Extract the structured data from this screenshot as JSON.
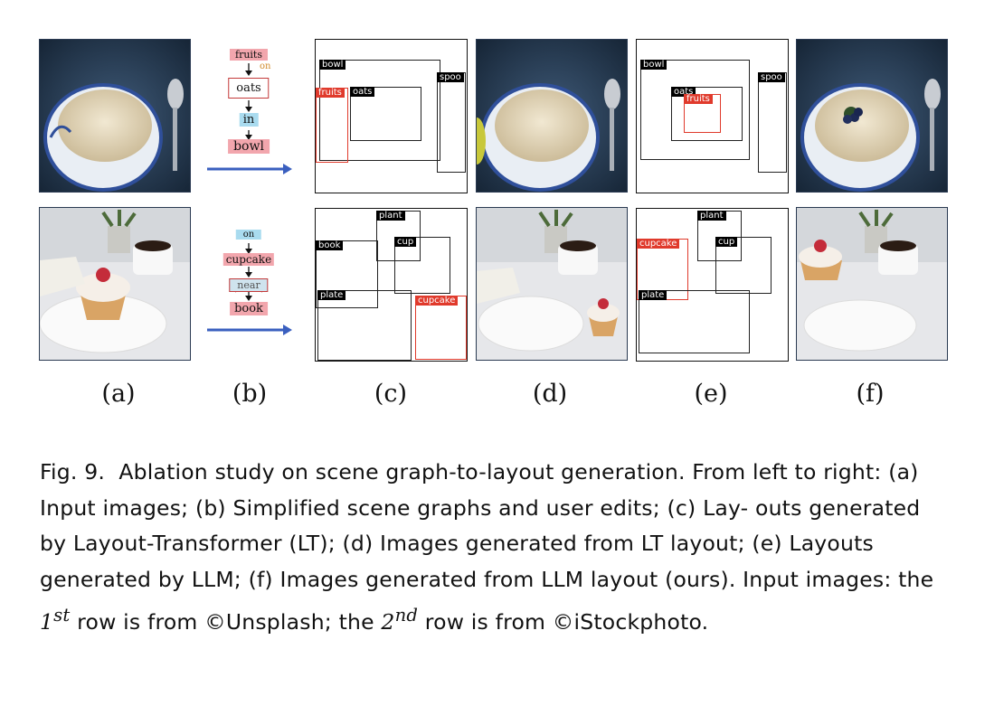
{
  "figure": {
    "column_labels": [
      "(a)",
      "(b)",
      "(c)",
      "(d)",
      "(e)",
      "(f)"
    ],
    "row1": {
      "scene_graph": {
        "n1": "fruits",
        "rel1": "on",
        "n2": "oats",
        "rel2": "in",
        "n3": "bowl"
      },
      "lt_layout": {
        "bowl": "bowl",
        "fruits": "fruits",
        "oats": "oats",
        "spoon": "spoo"
      },
      "llm_layout": {
        "bowl": "bowl",
        "oats": "oats",
        "fruits": "fruits",
        "spoon": "spoo"
      }
    },
    "row2": {
      "scene_graph": {
        "rel_top": "on",
        "n1": "cupcake",
        "rel_edit": "near",
        "n2": "book"
      },
      "lt_layout": {
        "plant": "plant",
        "book": "book",
        "cup": "cup",
        "plate": "plate",
        "cupcake": "cupcake"
      },
      "llm_layout": {
        "plant": "plant",
        "cupcake": "cupcake",
        "cup": "cup",
        "plate": "plate"
      }
    }
  },
  "caption": {
    "prefix": "Fig. 9.",
    "text1": "Ablation study on scene graph-to-layout generation. From left to right: (a) Input images; (b) Simplified scene graphs and user edits; (c) Lay- outs generated by Layout-Transformer (LT); (d) Images generated from LT layout; (e) Layouts generated by LLM; (f) Images generated from LLM layout (ours). Input images: the ",
    "ord1": "1",
    "sup1": "st",
    "text2": " row is from ©Unsplash; the ",
    "ord2": "2",
    "sup2": "nd",
    "text3": " row is from ©iStockphoto."
  },
  "colors": {
    "node_fill": "#f2a6ad",
    "node_border": "#c43a3a",
    "rel_fill": "#a9dbef",
    "arrow": "#3a5fbf",
    "edit_red": "#e03a2c"
  }
}
